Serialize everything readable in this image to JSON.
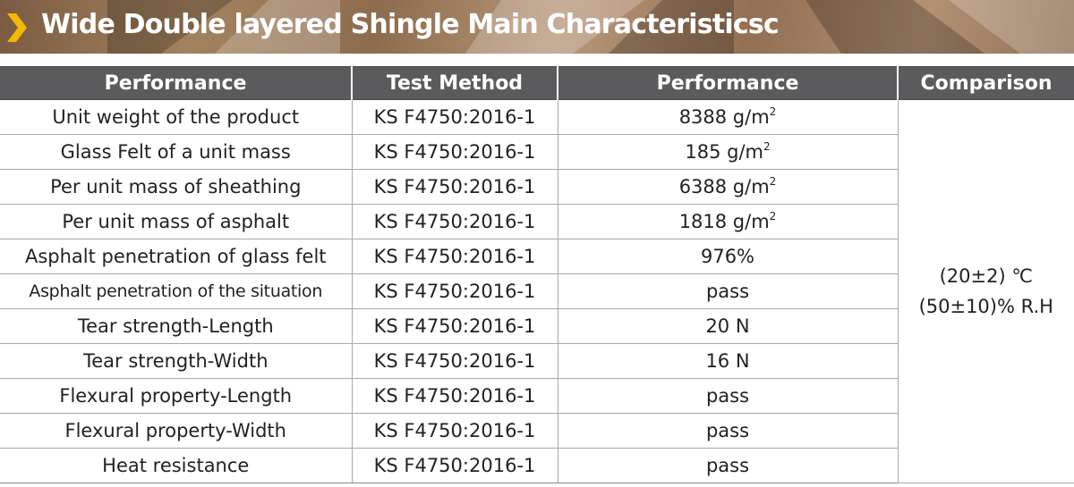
{
  "banner": {
    "title": "Wide Double layered Shingle Main Characteristicsc",
    "icon": "chevron-right-icon",
    "accent_color": "#f5b800"
  },
  "table": {
    "headers": [
      "Performance",
      "Test Method",
      "Performance",
      "Comparison"
    ],
    "rows": [
      {
        "performance": "Unit weight of the product",
        "method": "KS F4750:2016-1",
        "value": "8388 g/m",
        "unit_sup": "2"
      },
      {
        "performance": "Glass Felt of a unit mass",
        "method": "KS F4750:2016-1",
        "value": "185 g/m",
        "unit_sup": "2"
      },
      {
        "performance": "Per unit mass of sheathing",
        "method": "KS F4750:2016-1",
        "value": "6388 g/m",
        "unit_sup": "2"
      },
      {
        "performance": "Per unit mass of asphalt",
        "method": "KS F4750:2016-1",
        "value": "1818 g/m",
        "unit_sup": "2"
      },
      {
        "performance": "Asphalt penetration of glass felt",
        "method": "KS F4750:2016-1",
        "value": "976%",
        "unit_sup": ""
      },
      {
        "performance": "Asphalt penetration of the situation",
        "method": "KS F4750:2016-1",
        "value": "pass",
        "unit_sup": ""
      },
      {
        "performance": "Tear strength-Length",
        "method": "KS F4750:2016-1",
        "value": "20 N",
        "unit_sup": ""
      },
      {
        "performance": "Tear strength-Width",
        "method": "KS F4750:2016-1",
        "value": "16 N",
        "unit_sup": ""
      },
      {
        "performance": "Flexural property-Length",
        "method": "KS F4750:2016-1",
        "value": "pass",
        "unit_sup": ""
      },
      {
        "performance": "Flexural property-Width",
        "method": "KS F4750:2016-1",
        "value": "pass",
        "unit_sup": ""
      },
      {
        "performance": "Heat resistance",
        "method": "KS F4750:2016-1",
        "value": "pass",
        "unit_sup": ""
      }
    ],
    "comparison": {
      "line1": "(20±2) ℃",
      "line2": "(50±10)% R.H"
    }
  }
}
